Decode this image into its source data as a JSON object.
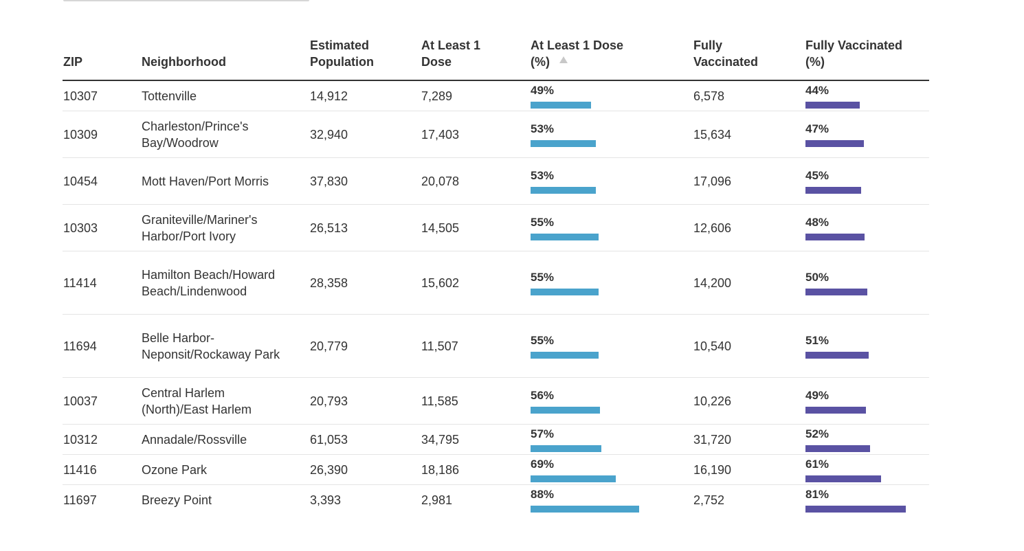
{
  "colors": {
    "dose_bar": "#4aa3cc",
    "fully_bar": "#5a52a3",
    "header_rule": "#333333",
    "row_rule": "#e4e4e4"
  },
  "table": {
    "headers": {
      "zip": "ZIP",
      "neighborhood": "Neighborhood",
      "population": [
        "Estimated",
        "Population"
      ],
      "at_least_1": [
        "At Least 1",
        "Dose"
      ],
      "at_least_1_pct": [
        "At Least 1 Dose",
        "(%)"
      ],
      "fully": [
        "Fully",
        "Vaccinated"
      ],
      "fully_pct": [
        "Fully Vaccinated",
        "(%)"
      ]
    },
    "sort": {
      "column": "at_least_1_pct",
      "direction": "ascending",
      "icon": "sort-ascending-icon"
    },
    "rows": [
      {
        "zip": "10307",
        "neighborhood": "Tottenville",
        "population": "14,912",
        "at_least_1": "7,289",
        "at_least_1_pct": "49%",
        "at_least_1_frac": 0.49,
        "fully": "6,578",
        "fully_pct": "44%",
        "fully_frac": 0.44
      },
      {
        "zip": "10309",
        "neighborhood": "Charleston/Prince's Bay/Woodrow",
        "population": "32,940",
        "at_least_1": "17,403",
        "at_least_1_pct": "53%",
        "at_least_1_frac": 0.53,
        "fully": "15,634",
        "fully_pct": "47%",
        "fully_frac": 0.47
      },
      {
        "zip": "10454",
        "neighborhood": "Mott Haven/Port Morris",
        "population": "37,830",
        "at_least_1": "20,078",
        "at_least_1_pct": "53%",
        "at_least_1_frac": 0.53,
        "fully": "17,096",
        "fully_pct": "45%",
        "fully_frac": 0.45
      },
      {
        "zip": "10303",
        "neighborhood": "Graniteville/Mariner's Harbor/Port Ivory",
        "population": "26,513",
        "at_least_1": "14,505",
        "at_least_1_pct": "55%",
        "at_least_1_frac": 0.55,
        "fully": "12,606",
        "fully_pct": "48%",
        "fully_frac": 0.48
      },
      {
        "zip": "11414",
        "neighborhood": "Hamilton Beach/Howard Beach/Lindenwood",
        "population": "28,358",
        "at_least_1": "15,602",
        "at_least_1_pct": "55%",
        "at_least_1_frac": 0.55,
        "fully": "14,200",
        "fully_pct": "50%",
        "fully_frac": 0.5
      },
      {
        "zip": "11694",
        "neighborhood": "Belle Harbor-Neponsit/Rockaway Park",
        "population": "20,779",
        "at_least_1": "11,507",
        "at_least_1_pct": "55%",
        "at_least_1_frac": 0.55,
        "fully": "10,540",
        "fully_pct": "51%",
        "fully_frac": 0.51
      },
      {
        "zip": "10037",
        "neighborhood": "Central Harlem (North)/East Harlem",
        "population": "20,793",
        "at_least_1": "11,585",
        "at_least_1_pct": "56%",
        "at_least_1_frac": 0.56,
        "fully": "10,226",
        "fully_pct": "49%",
        "fully_frac": 0.49
      },
      {
        "zip": "10312",
        "neighborhood": "Annadale/Rossville",
        "population": "61,053",
        "at_least_1": "34,795",
        "at_least_1_pct": "57%",
        "at_least_1_frac": 0.57,
        "fully": "31,720",
        "fully_pct": "52%",
        "fully_frac": 0.52
      },
      {
        "zip": "11416",
        "neighborhood": "Ozone Park",
        "population": "26,390",
        "at_least_1": "18,186",
        "at_least_1_pct": "69%",
        "at_least_1_frac": 0.69,
        "fully": "16,190",
        "fully_pct": "61%",
        "fully_frac": 0.61
      },
      {
        "zip": "11697",
        "neighborhood": "Breezy Point",
        "population": "3,393",
        "at_least_1": "2,981",
        "at_least_1_pct": "88%",
        "at_least_1_frac": 0.88,
        "fully": "2,752",
        "fully_pct": "81%",
        "fully_frac": 0.81
      }
    ]
  }
}
